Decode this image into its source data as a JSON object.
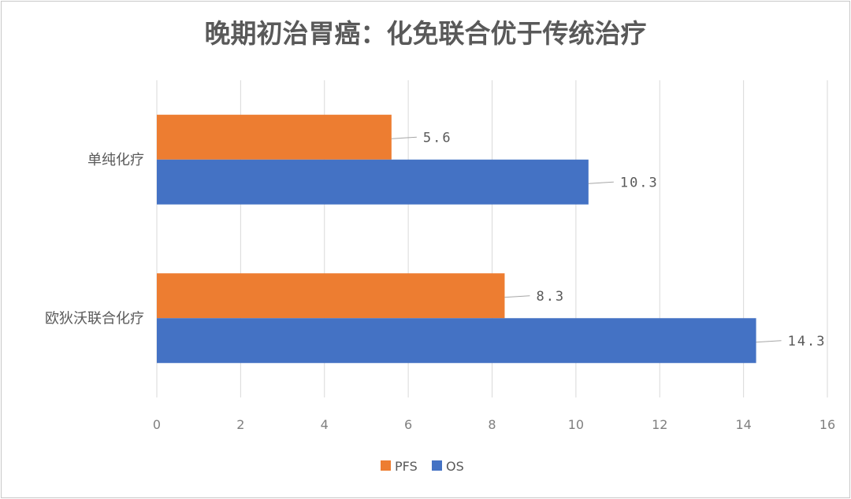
{
  "chart_data": {
    "type": "bar",
    "orientation": "horizontal",
    "title": "晚期初治胃癌：化免联合优于传统治疗",
    "categories": [
      "单纯化疗",
      "欧狄沃联合化疗"
    ],
    "series": [
      {
        "name": "PFS",
        "values": [
          5.6,
          8.3
        ],
        "color": "#ED7D31"
      },
      {
        "name": "OS",
        "values": [
          10.3,
          14.3
        ],
        "color": "#4472C4"
      }
    ],
    "xlim": [
      0,
      16
    ],
    "xticks": [
      0,
      2,
      4,
      6,
      8,
      10,
      12,
      14,
      16
    ],
    "xlabel": "",
    "ylabel": "",
    "grid": true,
    "legend_position": "bottom",
    "data_labels": true
  }
}
